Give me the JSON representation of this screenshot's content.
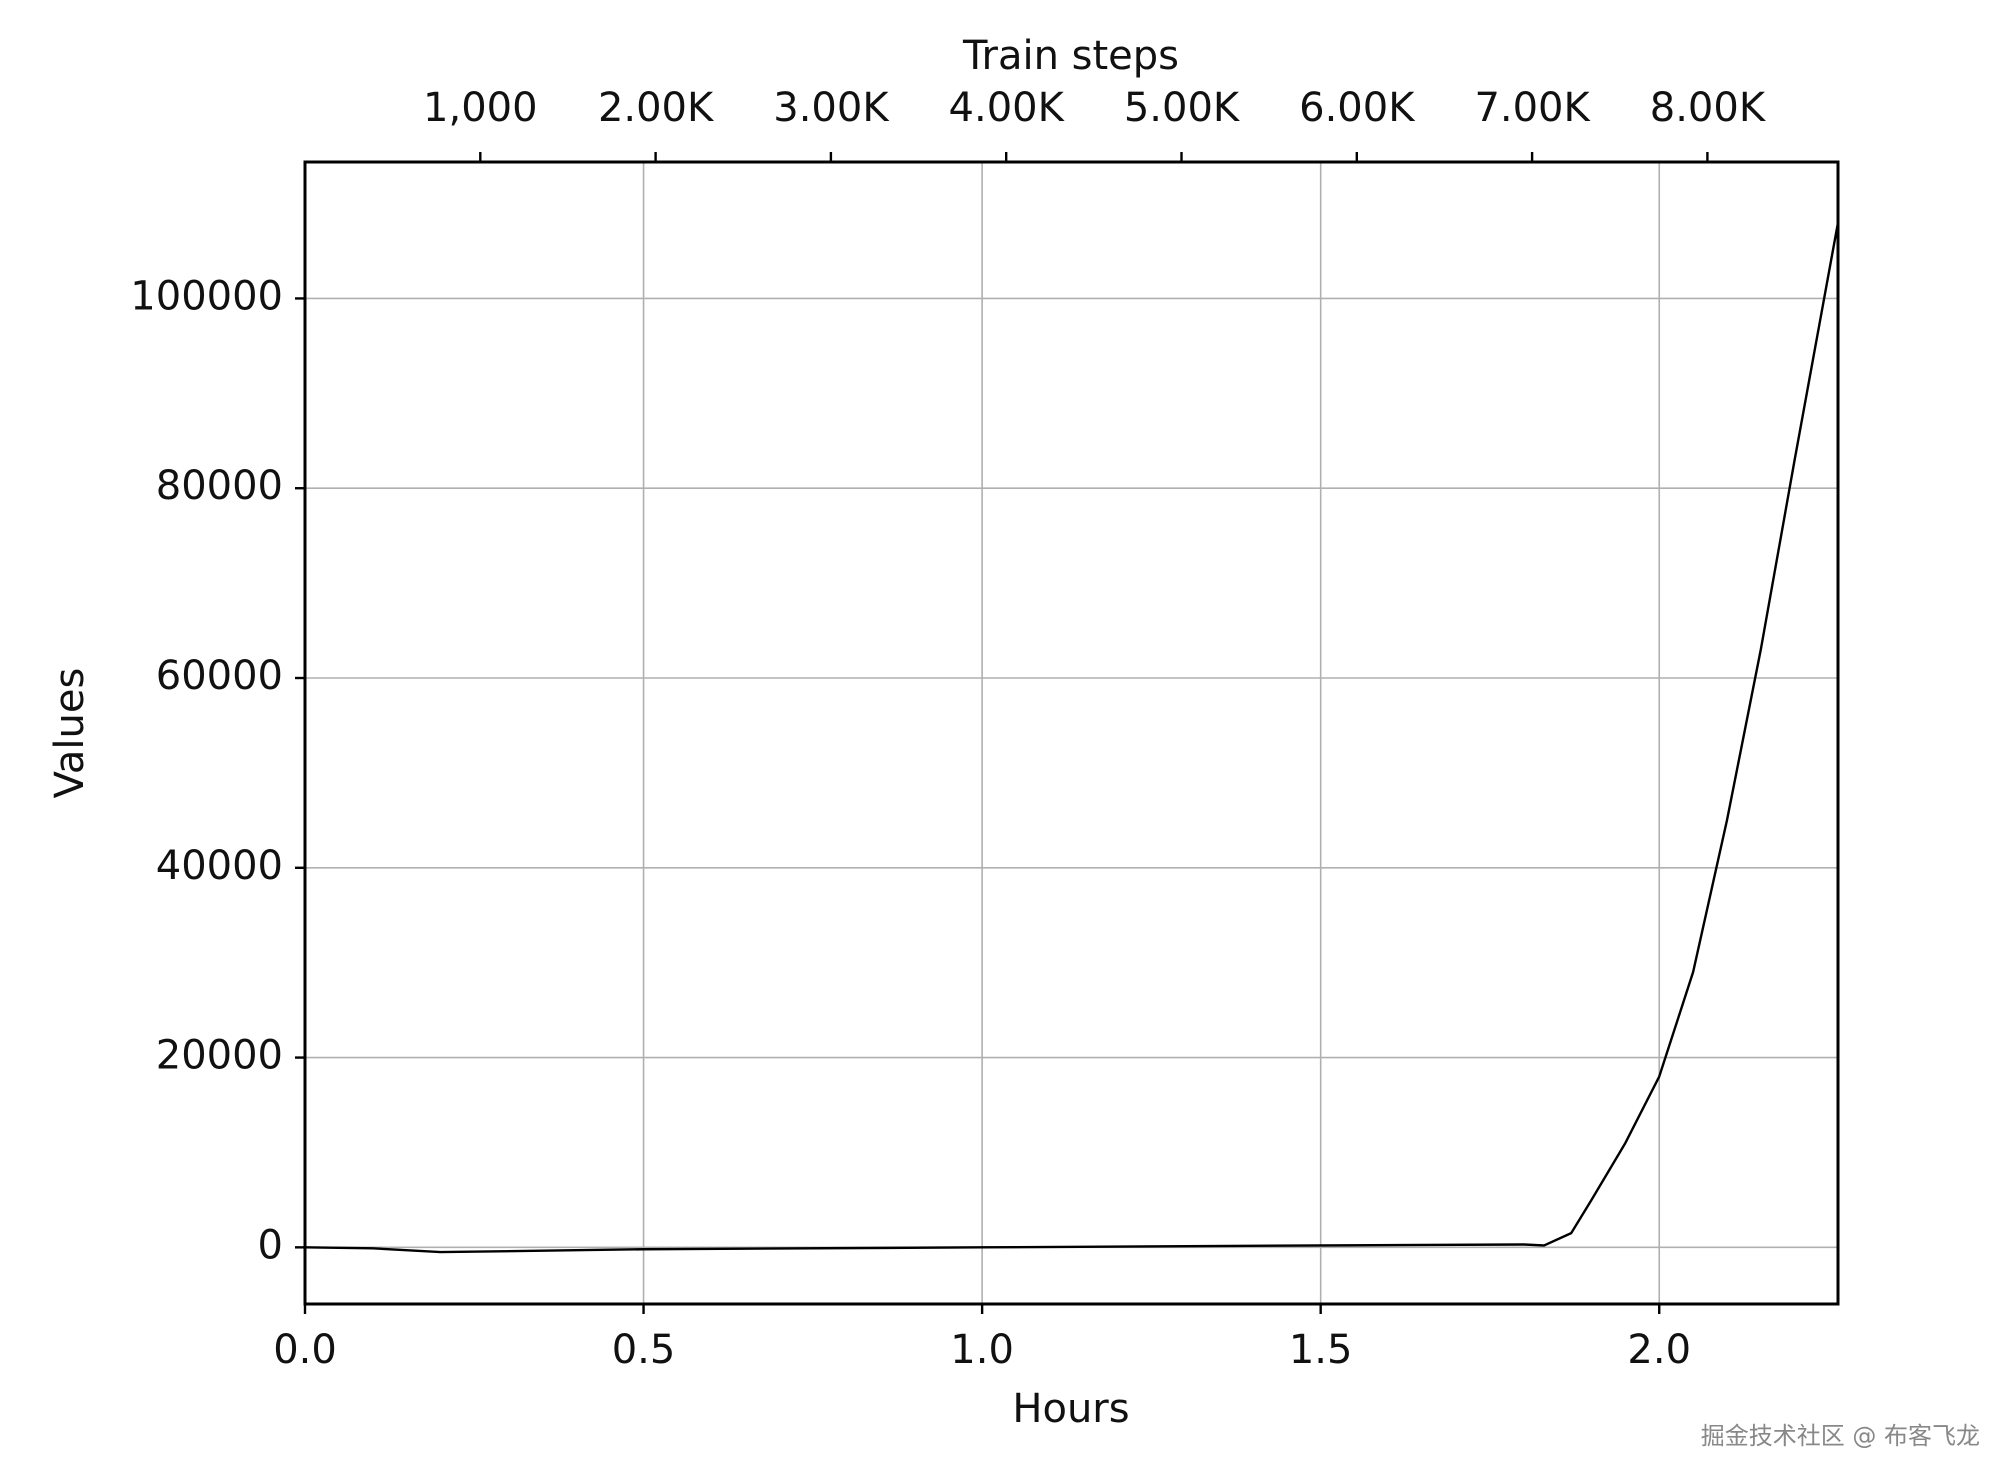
{
  "chart_data": {
    "type": "line",
    "x_label": "Hours",
    "y_label": "Values",
    "x2_label": "Train steps",
    "x": [
      0,
      0.1,
      0.2,
      0.5,
      1.0,
      1.5,
      1.8,
      1.83,
      1.87,
      1.9,
      1.95,
      2.0,
      2.05,
      2.1,
      2.15,
      2.2,
      2.264
    ],
    "series": [
      {
        "color": "#000000",
        "values": [
          0,
          -100,
          -500,
          -200,
          0,
          200,
          300,
          200,
          1500,
          5000,
          11000,
          18000,
          29000,
          45000,
          63000,
          83000,
          108000
        ]
      }
    ],
    "xlim": [
      0,
      2.264
    ],
    "xticks": [
      {
        "value": 0,
        "label": "0.0"
      },
      0.5,
      {
        "value": 1,
        "label": "1.0"
      },
      1.5,
      {
        "value": 2,
        "label": "2.0"
      }
    ],
    "ylim": [
      -5970,
      114380
    ],
    "yticks": [
      0,
      20000,
      40000,
      60000,
      80000,
      100000
    ],
    "x2lim": [
      0,
      8745
    ],
    "x2ticks": [
      {
        "value": 1000,
        "label": "1,000"
      },
      {
        "value": 2000,
        "label": "2.00K"
      },
      {
        "value": 3000,
        "label": "3.00K"
      },
      {
        "value": 4000,
        "label": "4.00K"
      },
      {
        "value": 5000,
        "label": "5.00K"
      },
      {
        "value": 6000,
        "label": "6.00K"
      },
      {
        "value": 7000,
        "label": "7.00K"
      },
      {
        "value": 8000,
        "label": "8.00K"
      }
    ],
    "grid": true
  },
  "watermark": "掘金技术社区 @ 布客飞龙"
}
